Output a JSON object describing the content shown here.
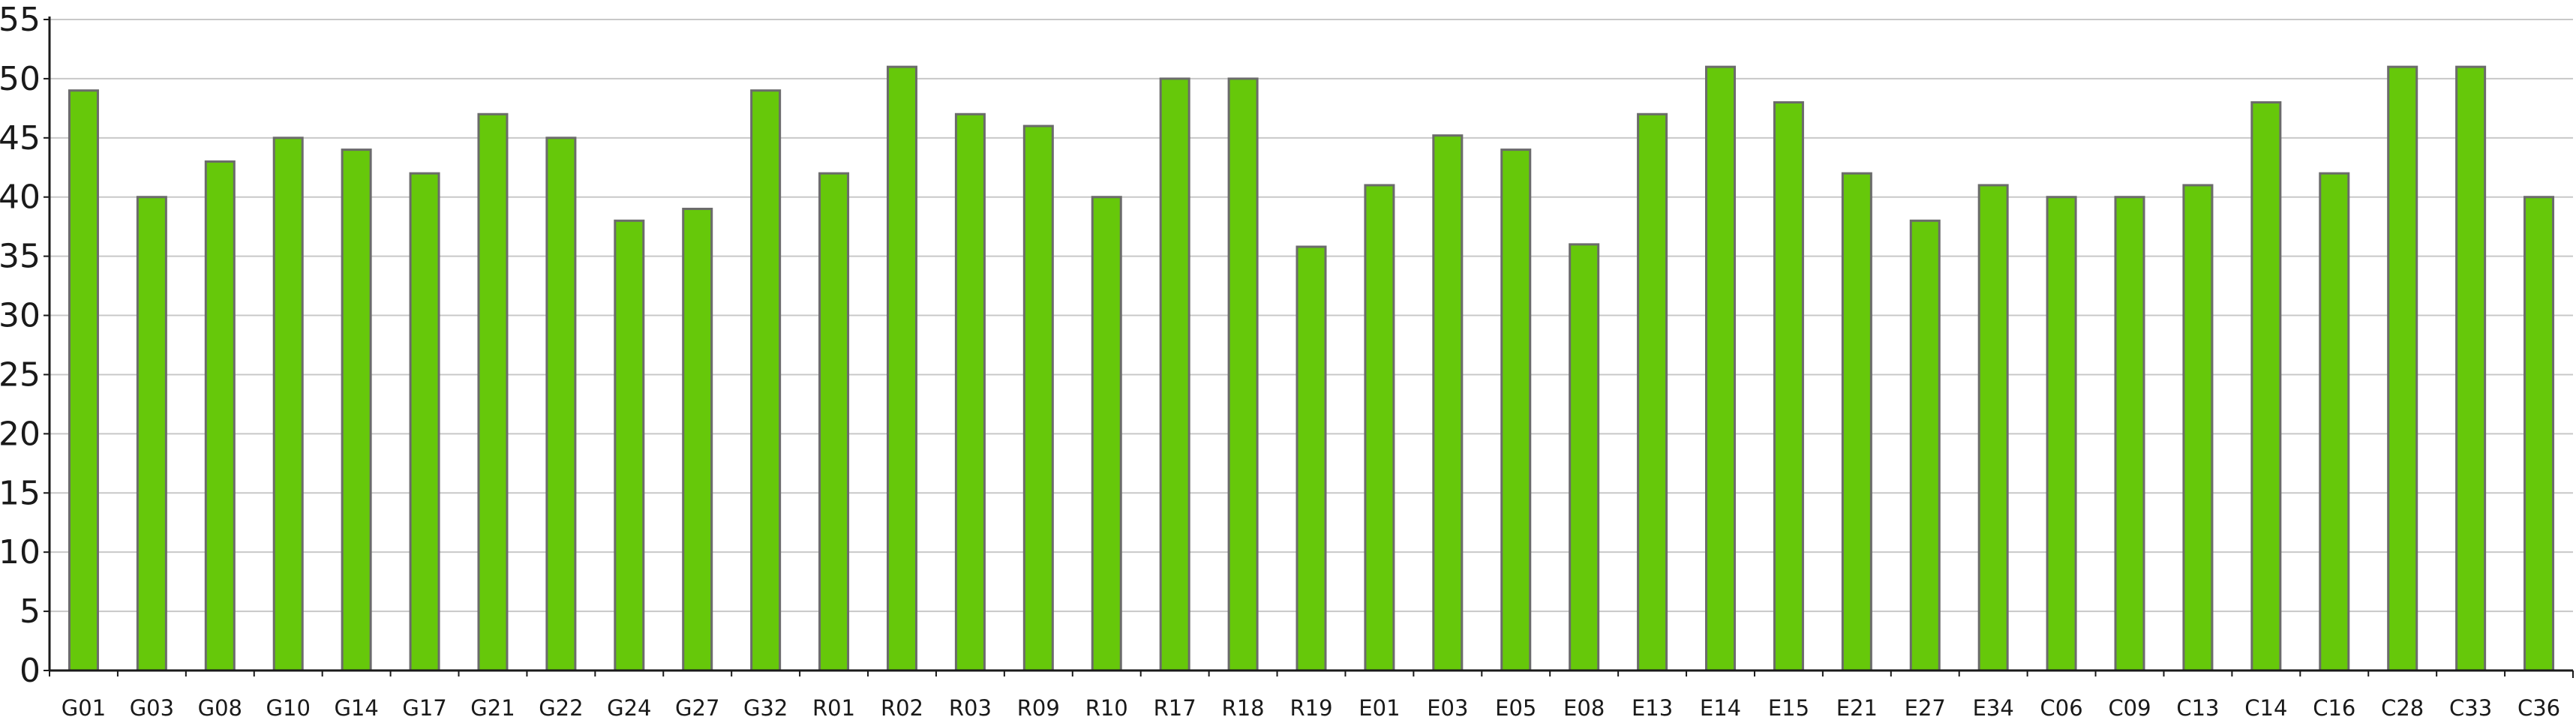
{
  "chart_data": {
    "type": "bar",
    "title": "",
    "xlabel": "",
    "ylabel": "",
    "categories": [
      "G01",
      "G03",
      "G08",
      "G10",
      "G14",
      "G17",
      "G21",
      "G22",
      "G24",
      "G27",
      "G32",
      "R01",
      "R02",
      "R03",
      "R09",
      "R10",
      "R17",
      "R18",
      "R19",
      "E01",
      "E03",
      "E05",
      "E08",
      "E13",
      "E14",
      "E15",
      "E21",
      "E27",
      "E34",
      "C06",
      "C09",
      "C13",
      "C14",
      "C16",
      "C28",
      "C33",
      "C36"
    ],
    "values": [
      49,
      40,
      43,
      45,
      44,
      42,
      47,
      45,
      38,
      39,
      49,
      42,
      51,
      47,
      46,
      40,
      50,
      50,
      35.8,
      41,
      45.2,
      44,
      36,
      47,
      51,
      48,
      42,
      38,
      41,
      40,
      40,
      41,
      48,
      42,
      51,
      51,
      40
    ],
    "ylim": [
      0,
      55
    ],
    "yticks": [
      0,
      5,
      10,
      15,
      20,
      25,
      30,
      35,
      40,
      45,
      50,
      55
    ],
    "grid": true,
    "legend": "none",
    "colors": {
      "bar_fill": "#66c80a",
      "bar_stroke": "#6b6b6b",
      "grid": "#c8c8c8",
      "axis": "#1a1a1a",
      "text": "#1a1a1a"
    }
  }
}
